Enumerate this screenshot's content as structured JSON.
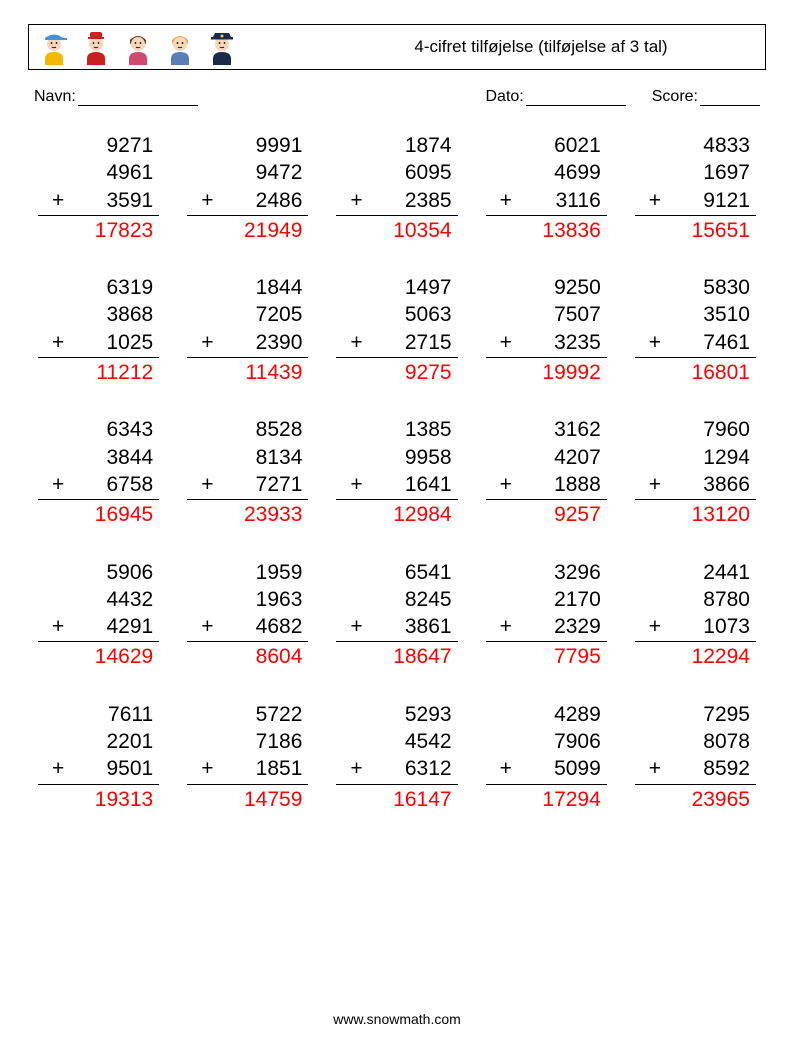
{
  "title": "4-cifret tilføjelse (tilføjelse af 3 tal)",
  "labels": {
    "name": "Navn:",
    "date": "Dato:",
    "score": "Score:"
  },
  "footer": "www.snowmath.com",
  "icons": [
    {
      "hat": "#4a90d9",
      "hat_type": "cap",
      "body": "#f5b800",
      "skin": "#f8d7b8",
      "hair": "#8b5a2b"
    },
    {
      "hat": "#c92020",
      "hat_type": "bellhop",
      "body": "#c92020",
      "skin": "#f8d7b8",
      "hair": "#3a2a1a"
    },
    {
      "hat": "none",
      "hat_type": "none",
      "body": "#d04a6f",
      "skin": "#f8d7b8",
      "hair": "#5a3a20"
    },
    {
      "hat": "none",
      "hat_type": "none",
      "body": "#5a7fb8",
      "skin": "#f8d7b8",
      "hair": "#d9a85a"
    },
    {
      "hat": "#1a2a4a",
      "hat_type": "officer",
      "body": "#1a2a4a",
      "skin": "#f8d7b8",
      "hair": "#2a1a10"
    }
  ],
  "style": {
    "answer_color": "#ff0000",
    "text_color": "#000000",
    "background": "#ffffff",
    "font_size_problem": 21,
    "columns": 5,
    "rows": 5
  },
  "problems": [
    {
      "operands": [
        9271,
        4961,
        3591
      ],
      "answer": 17823
    },
    {
      "operands": [
        9991,
        9472,
        2486
      ],
      "answer": 21949
    },
    {
      "operands": [
        1874,
        6095,
        2385
      ],
      "answer": 10354
    },
    {
      "operands": [
        6021,
        4699,
        3116
      ],
      "answer": 13836
    },
    {
      "operands": [
        4833,
        1697,
        9121
      ],
      "answer": 15651
    },
    {
      "operands": [
        6319,
        3868,
        1025
      ],
      "answer": 11212
    },
    {
      "operands": [
        1844,
        7205,
        2390
      ],
      "answer": 11439
    },
    {
      "operands": [
        1497,
        5063,
        2715
      ],
      "answer": 9275
    },
    {
      "operands": [
        9250,
        7507,
        3235
      ],
      "answer": 19992
    },
    {
      "operands": [
        5830,
        3510,
        7461
      ],
      "answer": 16801
    },
    {
      "operands": [
        6343,
        3844,
        6758
      ],
      "answer": 16945
    },
    {
      "operands": [
        8528,
        8134,
        7271
      ],
      "answer": 23933
    },
    {
      "operands": [
        1385,
        9958,
        1641
      ],
      "answer": 12984
    },
    {
      "operands": [
        3162,
        4207,
        1888
      ],
      "answer": 9257
    },
    {
      "operands": [
        7960,
        1294,
        3866
      ],
      "answer": 13120
    },
    {
      "operands": [
        5906,
        4432,
        4291
      ],
      "answer": 14629
    },
    {
      "operands": [
        1959,
        1963,
        4682
      ],
      "answer": 8604
    },
    {
      "operands": [
        6541,
        8245,
        3861
      ],
      "answer": 18647
    },
    {
      "operands": [
        3296,
        2170,
        2329
      ],
      "answer": 7795
    },
    {
      "operands": [
        2441,
        8780,
        1073
      ],
      "answer": 12294
    },
    {
      "operands": [
        7611,
        2201,
        9501
      ],
      "answer": 19313
    },
    {
      "operands": [
        5722,
        7186,
        1851
      ],
      "answer": 14759
    },
    {
      "operands": [
        5293,
        4542,
        6312
      ],
      "answer": 16147
    },
    {
      "operands": [
        4289,
        7906,
        5099
      ],
      "answer": 17294
    },
    {
      "operands": [
        7295,
        8078,
        8592
      ],
      "answer": 23965
    }
  ]
}
